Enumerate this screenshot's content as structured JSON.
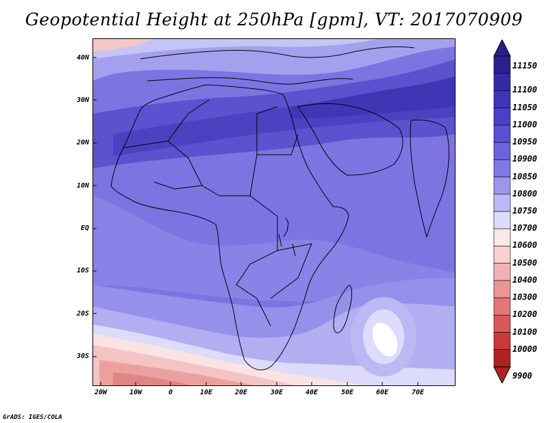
{
  "title": "Geopotential Height at 250hPa [gpm], VT: 2017070909",
  "credit": "GrADS: IGES/COLA",
  "lat_labels": [
    "40N",
    "30N",
    "20N",
    "10N",
    "EQ",
    "10S",
    "20S",
    "30S"
  ],
  "lon_labels": [
    "20W",
    "10W",
    "0",
    "10E",
    "20E",
    "30E",
    "40E",
    "50E",
    "60E",
    "70E"
  ],
  "colorbar": {
    "levels": [
      "11150",
      "11100",
      "11050",
      "11000",
      "10950",
      "10900",
      "10850",
      "10800",
      "10750",
      "10700",
      "10600",
      "10500",
      "10400",
      "10300",
      "10200",
      "10100",
      "10000",
      "9900"
    ],
    "colors": [
      "#2a1f8c",
      "#352aa6",
      "#3f34b8",
      "#4a40c6",
      "#5a50d2",
      "#6d63dc",
      "#8078e4",
      "#9c96ec",
      "#bdb9f4",
      "#ddddfa",
      "#fde8e8",
      "#f9cfcf",
      "#f3b2b2",
      "#ec9595",
      "#e37777",
      "#d85858",
      "#c83a3a",
      "#b02222"
    ]
  }
}
